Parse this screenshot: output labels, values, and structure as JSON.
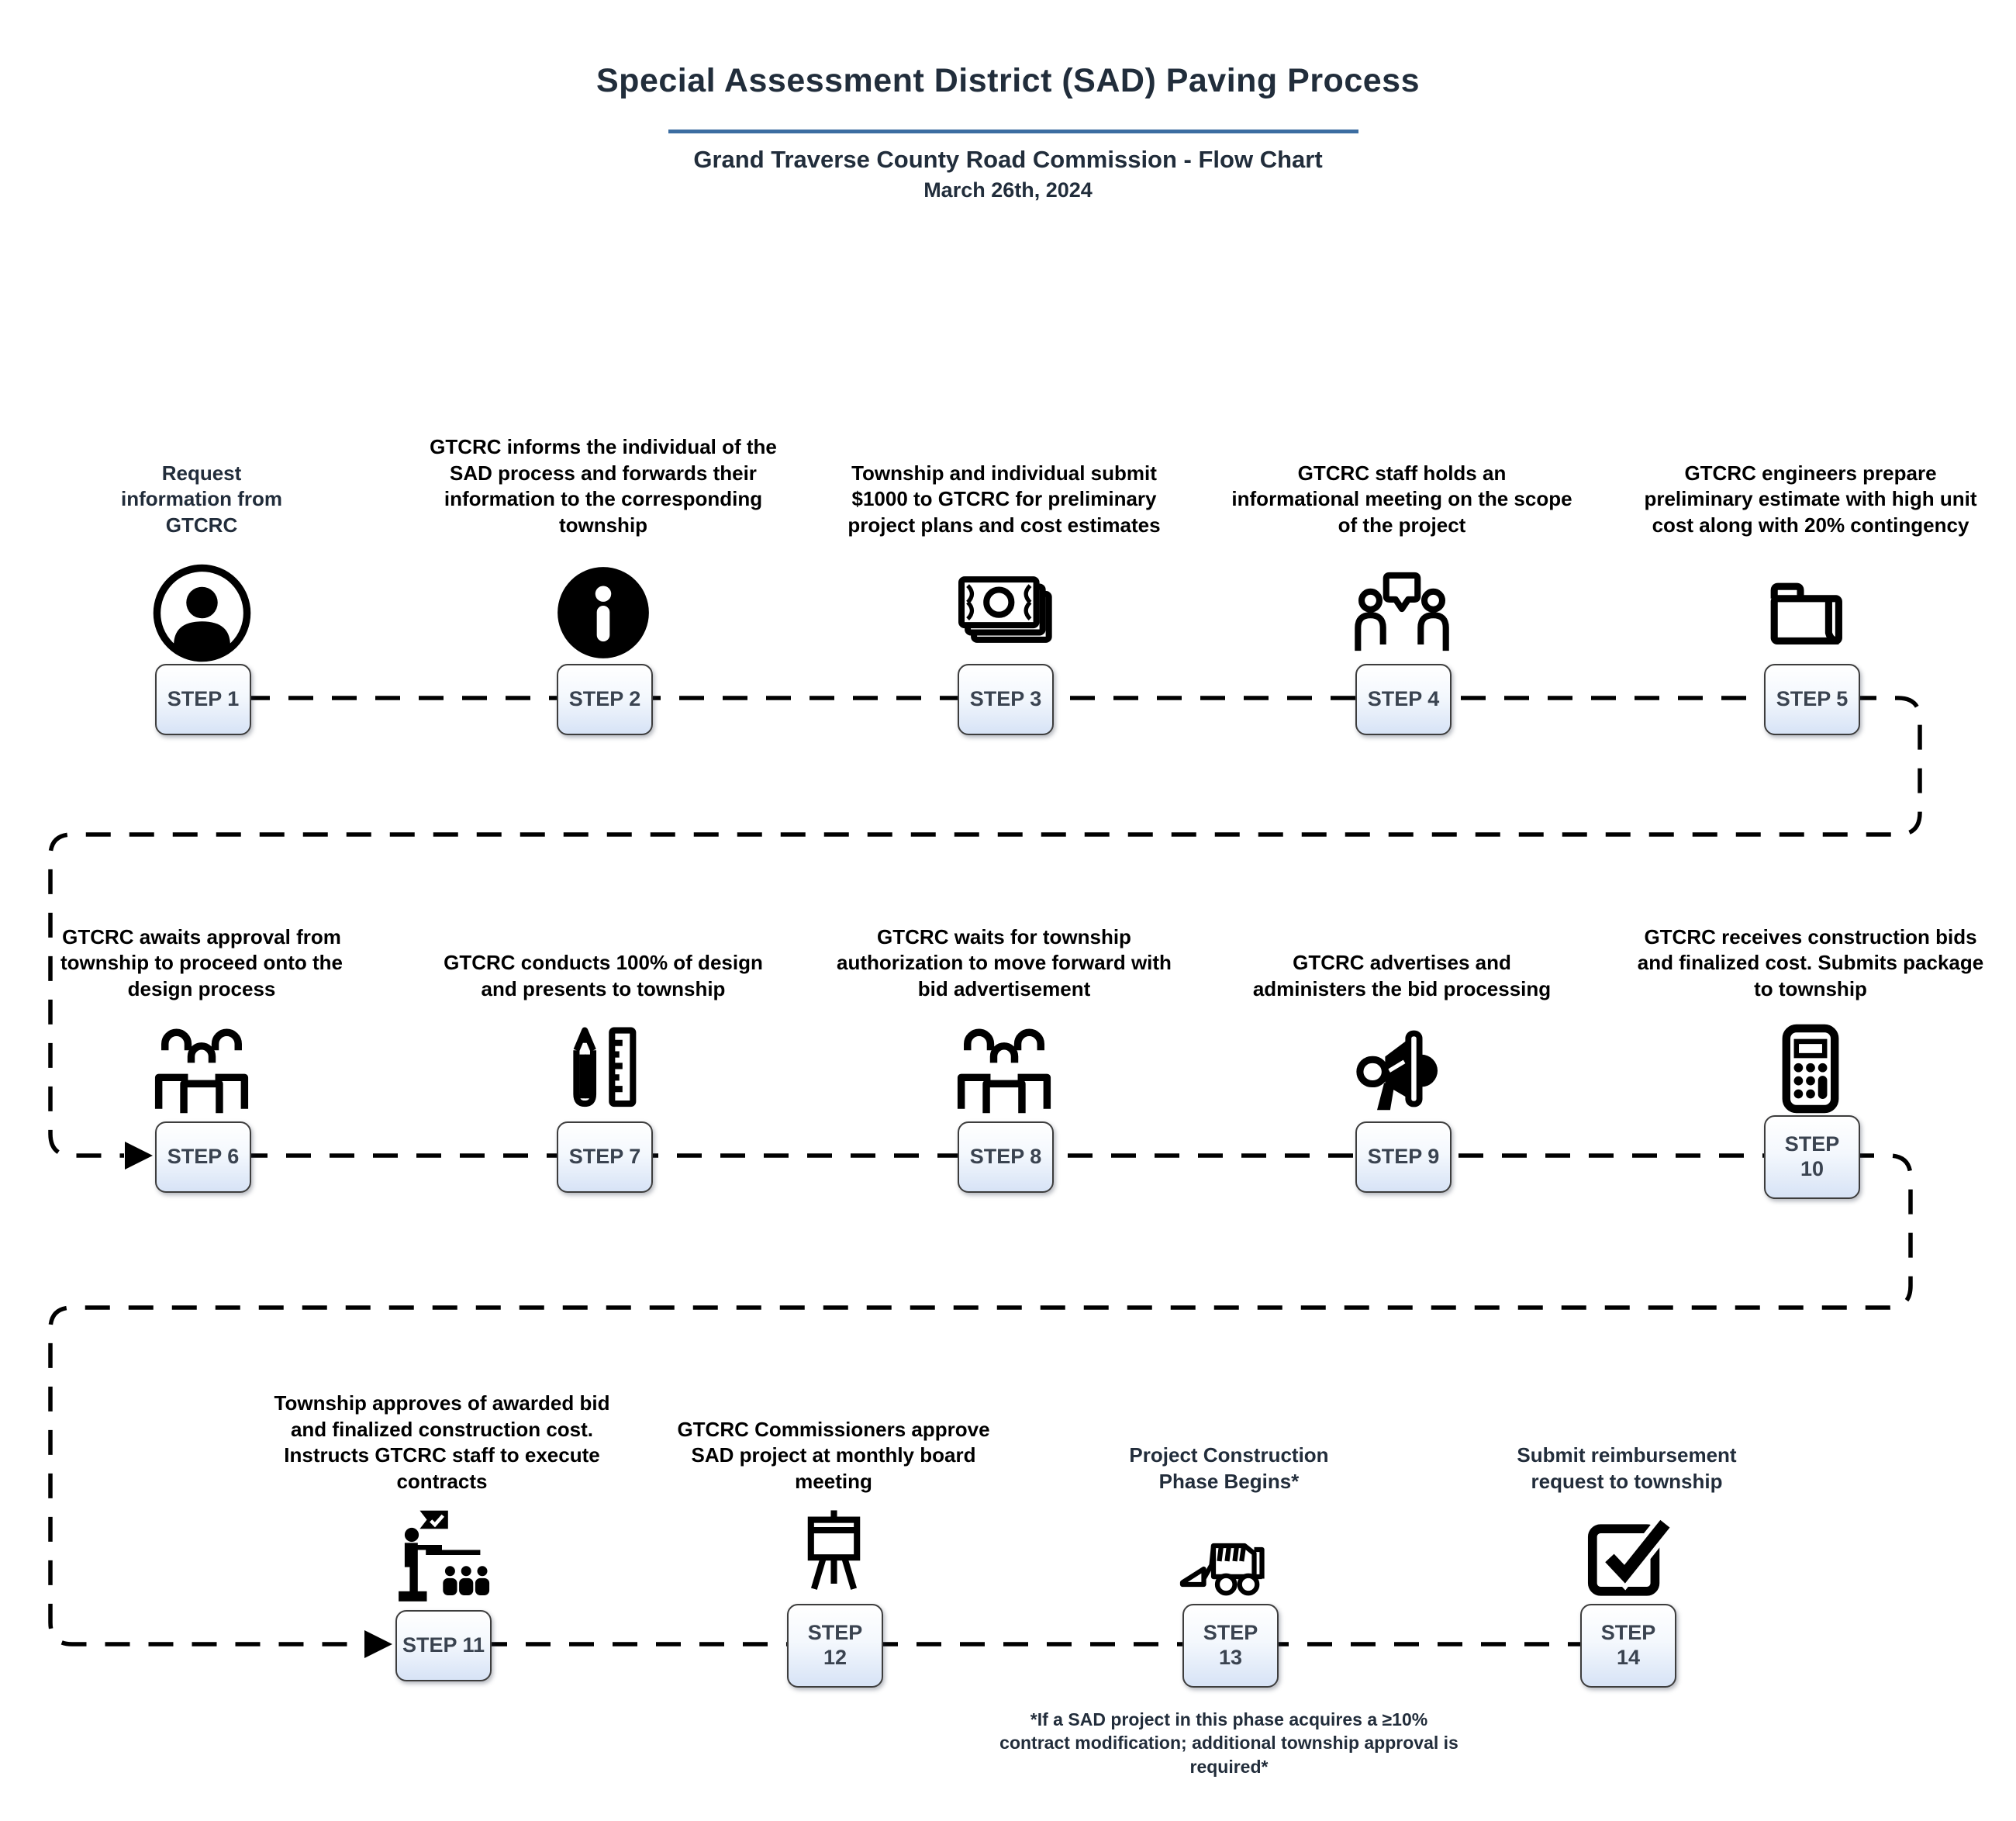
{
  "header": {
    "title": "Special Assessment District (SAD) Paving Process",
    "subtitle": "Grand Traverse County Road Commission - Flow Chart",
    "date": "March 26th, 2024"
  },
  "colors": {
    "accent_rule": "#3c6da1",
    "heading_text": "#212d3b",
    "step_text_black": "#000000",
    "step_text_navy": "#222d3b",
    "box_border": "#3d3d3d",
    "box_fill_top": "#ffffff",
    "box_fill_bottom": "#d7e3f6",
    "box_label": "#3a4350",
    "connector": "#000000"
  },
  "steps": [
    {
      "label": "STEP 1",
      "row": 1,
      "text_color": "navy",
      "icon": "person-circle-icon",
      "description": "Request information from GTCRC"
    },
    {
      "label": "STEP 2",
      "row": 1,
      "text_color": "black",
      "icon": "info-icon",
      "description": "GTCRC informs the individual of the SAD process and forwards their information to the corresponding township"
    },
    {
      "label": "STEP 3",
      "row": 1,
      "text_color": "black",
      "icon": "money-icon",
      "description": "Township and individual submit $1000 to GTCRC for preliminary project plans and cost estimates"
    },
    {
      "label": "STEP 4",
      "row": 1,
      "text_color": "black",
      "icon": "meeting-chat-icon",
      "description": "GTCRC staff holds an informational meeting on the scope of the project"
    },
    {
      "label": "STEP 5",
      "row": 1,
      "text_color": "black",
      "icon": "folder-icon",
      "description": "GTCRC engineers prepare preliminary estimate with high unit cost along with 20% contingency"
    },
    {
      "label": "STEP 6",
      "row": 2,
      "text_color": "black",
      "icon": "people-table-icon",
      "description": "GTCRC awaits approval from township to proceed onto the design process"
    },
    {
      "label": "STEP 7",
      "row": 2,
      "text_color": "black",
      "icon": "pencil-ruler-icon",
      "description": "GTCRC conducts 100% of design and presents to township"
    },
    {
      "label": "STEP 8",
      "row": 2,
      "text_color": "black",
      "icon": "people-table-icon",
      "description": "GTCRC waits for township authorization to move forward with bid advertisement"
    },
    {
      "label": "STEP 9",
      "row": 2,
      "text_color": "black",
      "icon": "megaphone-icon",
      "description": "GTCRC advertises and administers the bid processing"
    },
    {
      "label": "STEP 10",
      "row": 2,
      "text_color": "black",
      "icon": "calculator-icon",
      "description": "GTCRC receives construction bids and finalized cost. Submits package to township"
    },
    {
      "label": "STEP 11",
      "row": 3,
      "text_color": "black",
      "icon": "podium-presentation-icon",
      "description": "Township approves of awarded bid and finalized construction cost. Instructs GTCRC staff to execute contracts"
    },
    {
      "label": "STEP 12",
      "row": 3,
      "text_color": "black",
      "icon": "easel-board-icon",
      "description": "GTCRC Commissioners approve SAD project at monthly board meeting"
    },
    {
      "label": "STEP 13",
      "row": 3,
      "text_color": "navy",
      "icon": "skid-steer-loader-icon",
      "description": "Project Construction Phase Begins*"
    },
    {
      "label": "STEP 14",
      "row": 3,
      "text_color": "navy",
      "icon": "checkbox-checked-icon",
      "description": "Submit reimbursement request to township"
    }
  ],
  "footnote": "*If a SAD project in this phase acquires a ≥10% contract modification; additional township approval is required*"
}
